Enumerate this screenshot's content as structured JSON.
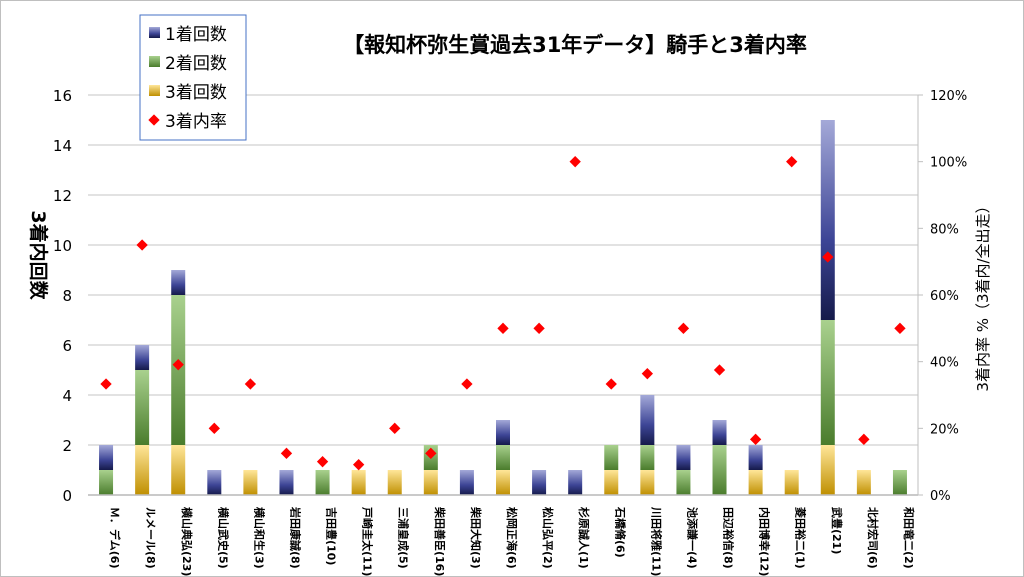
{
  "chart_data": {
    "type": "bar",
    "stacked": true,
    "title": "【報知杯弥生賞過去31年データ】騎手と3着内率",
    "ylabel": "3着内回数",
    "y2label": "3着内率 %（3着内/全出走）",
    "ylim": [
      0,
      16
    ],
    "y_ticks": [
      "0",
      "2",
      "4",
      "6",
      "8",
      "10",
      "12",
      "14",
      "16"
    ],
    "y2lim": [
      0,
      120
    ],
    "y2_ticks": [
      "0%",
      "20%",
      "40%",
      "60%",
      "80%",
      "100%",
      "120%"
    ],
    "grid": true,
    "legend_position": "top-left",
    "categories": [
      "Ｍ．デム(6)",
      "ルメール(8)",
      "横山典弘(23)",
      "横山武史(5)",
      "横山和生(3)",
      "岩田康誠(8)",
      "吉田豊(10)",
      "戸崎圭太(11)",
      "三浦皇成(5)",
      "柴田善臣(16)",
      "柴田大知(3)",
      "松岡正海(6)",
      "松山弘平(2)",
      "杉原誠人(1)",
      "石橋脩(6)",
      "川田将雅(11)",
      "池添謙一(4)",
      "田辺裕信(8)",
      "内田博幸(12)",
      "菱田裕二(1)",
      "武豊(21)",
      "北村宏司(6)",
      "和田竜二(2)"
    ],
    "series": [
      {
        "name": "1着回数",
        "color": "#2e3586",
        "values": [
          1,
          1,
          1,
          1,
          0,
          1,
          0,
          0,
          0,
          0,
          1,
          1,
          1,
          1,
          0,
          2,
          1,
          1,
          1,
          0,
          8,
          0,
          0
        ]
      },
      {
        "name": "2着回数",
        "color": "#548235",
        "values": [
          1,
          3,
          6,
          0,
          0,
          0,
          1,
          0,
          0,
          1,
          0,
          1,
          0,
          0,
          1,
          1,
          1,
          2,
          0,
          0,
          5,
          0,
          1
        ]
      },
      {
        "name": "3着回数",
        "color": "#c9961a",
        "values": [
          0,
          2,
          2,
          0,
          1,
          0,
          0,
          1,
          1,
          1,
          0,
          1,
          0,
          0,
          1,
          1,
          0,
          0,
          1,
          1,
          2,
          1,
          0
        ]
      },
      {
        "name": "3着内率",
        "color": "#ff0000",
        "axis": "right",
        "type": "scatter",
        "values": [
          33.3,
          75,
          39.1,
          20,
          33.3,
          12.5,
          10,
          9.1,
          20,
          12.5,
          33.3,
          50,
          50,
          100,
          33.3,
          36.4,
          50,
          37.5,
          16.7,
          100,
          71.4,
          16.7,
          50
        ]
      }
    ]
  }
}
